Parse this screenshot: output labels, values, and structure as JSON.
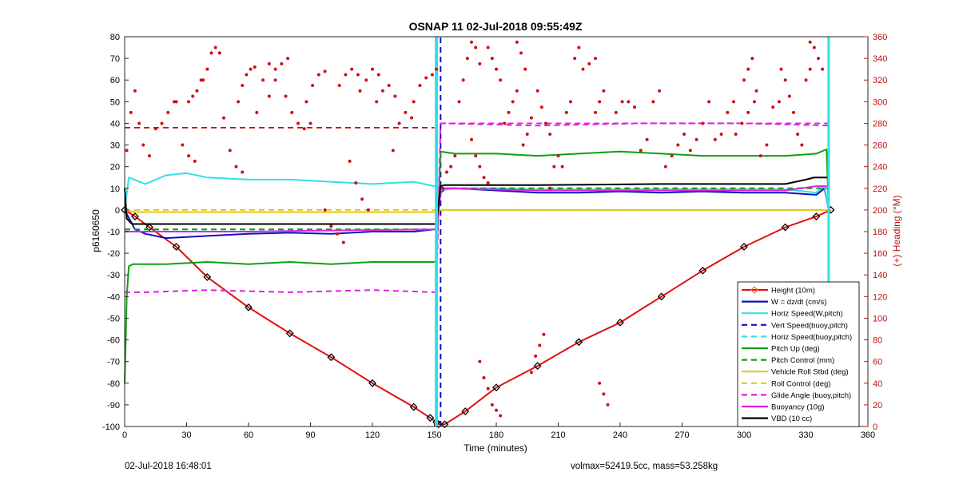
{
  "footer": {
    "left": "02-Jul-2018 16:48:01",
    "right": "volmax=52419.5cc, mass=53.258kg"
  },
  "chart_data": {
    "type": "line",
    "title": "OSNAP 11 02-Jul-2018 09:55:49Z",
    "xlabel": "Time (minutes)",
    "ylabel": "p6160650",
    "y2label": "(+) Heading (°M)",
    "xlim": [
      0,
      360
    ],
    "ylim": [
      -100,
      80
    ],
    "y2lim": [
      0,
      360
    ],
    "x_ticks": [
      0,
      30,
      60,
      90,
      120,
      150,
      180,
      210,
      240,
      270,
      300,
      330,
      360
    ],
    "y_ticks": [
      -100,
      -90,
      -80,
      -70,
      -60,
      -50,
      -40,
      -30,
      -20,
      -10,
      0,
      10,
      20,
      30,
      40,
      50,
      60,
      70,
      80
    ],
    "y2_ticks": [
      0,
      20,
      40,
      60,
      80,
      100,
      120,
      140,
      160,
      180,
      200,
      220,
      240,
      260,
      280,
      300,
      320,
      340,
      360
    ],
    "legend_position": "bottom-right",
    "grid": false,
    "series": [
      {
        "name": "Height (10m)",
        "color": "#e01010",
        "style": "solid",
        "marker": "diamond",
        "x": [
          0,
          5,
          12,
          25,
          40,
          60,
          80,
          100,
          120,
          140,
          148,
          151,
          152,
          155,
          165,
          180,
          200,
          220,
          240,
          260,
          280,
          300,
          320,
          335,
          342
        ],
        "y": [
          0,
          -3,
          -8,
          -17,
          -31,
          -45,
          -57,
          -68,
          -80,
          -91,
          -96,
          -98,
          -99,
          -99,
          -93,
          -82,
          -72,
          -61,
          -52,
          -40,
          -28,
          -17,
          -8,
          -3,
          0
        ]
      },
      {
        "name": "W = dz/dt (cm/s)",
        "color": "#1010c0",
        "style": "solid",
        "x": [
          0,
          5,
          10,
          20,
          40,
          60,
          80,
          100,
          120,
          140,
          150,
          151,
          153,
          156,
          160,
          180,
          200,
          220,
          240,
          260,
          280,
          300,
          320,
          335,
          339,
          341
        ],
        "y": [
          0,
          -9,
          -11,
          -13,
          -12,
          -11,
          -10.5,
          -11,
          -10,
          -10,
          -9,
          -9,
          8,
          10,
          10,
          9,
          8,
          8,
          8.5,
          8,
          8.5,
          8,
          8,
          7,
          10,
          0
        ]
      },
      {
        "name": "Horiz Speed(W,pitch)",
        "color": "#30e0e8",
        "style": "solid",
        "x": [
          0,
          2,
          10,
          20,
          30,
          40,
          60,
          80,
          100,
          120,
          140,
          150,
          151,
          153,
          160,
          180,
          200,
          220,
          240,
          260,
          280,
          300,
          320,
          335,
          339,
          341
        ],
        "y": [
          0,
          15,
          12,
          16,
          17,
          15,
          14,
          14,
          13,
          12,
          13,
          11,
          11,
          9,
          10,
          10,
          9.5,
          9.5,
          9.5,
          9.5,
          9.5,
          9.5,
          9.5,
          8,
          11,
          0
        ]
      },
      {
        "name": "Vert Speed(buoy,pitch)",
        "color": "#1010c0",
        "style": "dashed",
        "x": [
          153,
          153
        ],
        "y": [
          -100,
          80
        ]
      },
      {
        "name": "Horiz Speed(buoy,pitch)",
        "color": "#30e0e8",
        "style": "dashed",
        "x": [
          0,
          150,
          151,
          153,
          341
        ],
        "y": [
          -9,
          -9,
          -9,
          10,
          10
        ]
      },
      {
        "name": "Pitch Up (deg)",
        "color": "#10a010",
        "style": "solid",
        "x": [
          0,
          1,
          2,
          4,
          20,
          40,
          60,
          80,
          100,
          120,
          140,
          150,
          151,
          153,
          160,
          180,
          200,
          220,
          240,
          260,
          280,
          300,
          320,
          335,
          340,
          341
        ],
        "y": [
          -80,
          -40,
          -26,
          -25,
          -25,
          -24,
          -25,
          -24,
          -25,
          -24,
          -24,
          -24,
          -24,
          27,
          26,
          26,
          25,
          26,
          27,
          26,
          25,
          25,
          25,
          26,
          28,
          0
        ]
      },
      {
        "name": "Pitch Control (mm)",
        "color": "#10a010",
        "style": "dashed",
        "x": [
          0,
          150,
          151,
          153,
          341
        ],
        "y": [
          -9,
          -9,
          -9,
          10,
          10
        ]
      },
      {
        "name": "Vehicle Roll Stbd (deg)",
        "color": "#e0c820",
        "style": "solid",
        "x": [
          0,
          5,
          30,
          60,
          90,
          120,
          150,
          153,
          180,
          210,
          240,
          270,
          300,
          330,
          341
        ],
        "y": [
          0,
          -1,
          -1,
          -1,
          -1,
          -1,
          -1,
          0,
          0,
          0,
          0,
          0,
          0,
          0,
          0
        ]
      },
      {
        "name": "Roll Control (deg)",
        "color": "#e0c820",
        "style": "dashed",
        "x": [
          0,
          150,
          153,
          341
        ],
        "y": [
          0,
          0,
          0,
          0
        ]
      },
      {
        "name": "Glide Angle (buoy,pitch)",
        "color": "#e020e0",
        "style": "dashed",
        "x": [
          0,
          10,
          40,
          80,
          120,
          150,
          151,
          153,
          200,
          250,
          300,
          341
        ],
        "y": [
          -38,
          -38,
          -37,
          -38,
          -37,
          -38,
          -38,
          40,
          39,
          40,
          40,
          39
        ]
      },
      {
        "name": "Buoyancy (10g)",
        "color": "#e020e0",
        "style": "solid",
        "x": [
          0,
          20,
          60,
          100,
          150,
          151,
          153,
          155,
          200,
          260,
          320,
          335,
          341
        ],
        "y": [
          -10,
          -10,
          -10,
          -9.5,
          -9,
          -9,
          8,
          10,
          9,
          9,
          9,
          11,
          11
        ]
      },
      {
        "name": "VBD (10 cc)",
        "color": "#000000",
        "style": "solid",
        "x": [
          0,
          1,
          3,
          4,
          100,
          150,
          151,
          153,
          155,
          200,
          260,
          320,
          330,
          334,
          341
        ],
        "y": [
          10,
          -4,
          -6,
          -6.5,
          -6.5,
          -6.5,
          -6.5,
          11,
          11.5,
          11.5,
          12,
          12,
          14,
          15,
          15
        ]
      },
      {
        "name": "",
        "color": "#30e0e8",
        "style": "solid",
        "width": 4,
        "x": [
          151,
          151
        ],
        "y": [
          -100,
          80
        ],
        "show_in_legend": false
      },
      {
        "name": "",
        "color": "#30e0e8",
        "style": "solid",
        "width": 3,
        "x": [
          341,
          341
        ],
        "y": [
          -100,
          80
        ],
        "show_in_legend": false
      }
    ],
    "reference_lines": [
      {
        "axis": "y2",
        "value": 276,
        "color": "#c01010",
        "style": "dashed",
        "xlim": [
          0,
          150
        ]
      },
      {
        "axis": "y2",
        "value": 280,
        "color": "#e020e0",
        "style": "dashed",
        "xlim": [
          153,
          341
        ]
      }
    ],
    "heading_scatter": {
      "color": "#d01010",
      "segments": [
        {
          "x": [
            1,
            3,
            5,
            7,
            9
          ],
          "y": [
            255,
            290,
            310,
            280,
            260
          ]
        },
        {
          "x": [
            12,
            15,
            18,
            21,
            24
          ],
          "y": [
            250,
            275,
            280,
            290,
            300
          ]
        },
        {
          "x": [
            25,
            28,
            31,
            34
          ],
          "y": [
            300,
            260,
            250,
            245
          ]
        },
        {
          "x": [
            31,
            33,
            35,
            37
          ],
          "y": [
            300,
            305,
            310,
            320
          ]
        },
        {
          "x": [
            38,
            40,
            42,
            44,
            46
          ],
          "y": [
            320,
            330,
            345,
            350,
            345
          ]
        },
        {
          "x": [
            48,
            51,
            54,
            57
          ],
          "y": [
            285,
            255,
            240,
            235
          ]
        },
        {
          "x": [
            55,
            57,
            59,
            61,
            63
          ],
          "y": [
            300,
            315,
            325,
            330,
            332
          ]
        },
        {
          "x": [
            64,
            67,
            70,
            73
          ],
          "y": [
            290,
            320,
            335,
            330
          ]
        },
        {
          "x": [
            70,
            73,
            76,
            79
          ],
          "y": [
            305,
            320,
            335,
            340
          ]
        },
        {
          "x": [
            78,
            81,
            84,
            87,
            90
          ],
          "y": [
            305,
            290,
            280,
            275,
            280
          ]
        },
        {
          "x": [
            88,
            91,
            94,
            97
          ],
          "y": [
            300,
            315,
            325,
            328
          ]
        },
        {
          "x": [
            97,
            100,
            103,
            106
          ],
          "y": [
            200,
            185,
            178,
            170
          ]
        },
        {
          "x": [
            104,
            107,
            110,
            113
          ],
          "y": [
            315,
            325,
            330,
            325
          ]
        },
        {
          "x": [
            109,
            112,
            115,
            118
          ],
          "y": [
            245,
            225,
            210,
            200
          ]
        },
        {
          "x": [
            114,
            117,
            120,
            123
          ],
          "y": [
            310,
            320,
            330,
            325
          ]
        },
        {
          "x": [
            122,
            125,
            128,
            131
          ],
          "y": [
            300,
            310,
            315,
            305
          ]
        },
        {
          "x": [
            130,
            133,
            136,
            139
          ],
          "y": [
            255,
            280,
            290,
            285
          ]
        },
        {
          "x": [
            140,
            143,
            146,
            149,
            151
          ],
          "y": [
            300,
            315,
            322,
            325,
            330
          ]
        },
        {
          "x": [
            154,
            156,
            158,
            160
          ],
          "y": [
            220,
            235,
            240,
            250
          ]
        },
        {
          "x": [
            162,
            164,
            166,
            168,
            170,
            172
          ],
          "y": [
            300,
            320,
            340,
            355,
            350,
            335
          ]
        },
        {
          "x": [
            168,
            170,
            172,
            174,
            176
          ],
          "y": [
            265,
            250,
            240,
            230,
            225
          ]
        },
        {
          "x": [
            172,
            174,
            176
          ],
          "y": [
            60,
            45,
            35
          ]
        },
        {
          "x": [
            176,
            178,
            180,
            182
          ],
          "y": [
            350,
            340,
            330,
            320
          ]
        },
        {
          "x": [
            178,
            180,
            182
          ],
          "y": [
            20,
            15,
            10
          ]
        },
        {
          "x": [
            184,
            186,
            188,
            190
          ],
          "y": [
            280,
            290,
            300,
            310
          ]
        },
        {
          "x": [
            190,
            192,
            194
          ],
          "y": [
            355,
            345,
            330
          ]
        },
        {
          "x": [
            193,
            195,
            197
          ],
          "y": [
            260,
            270,
            285
          ]
        },
        {
          "x": [
            197,
            199,
            201,
            203
          ],
          "y": [
            50,
            65,
            75,
            85
          ]
        },
        {
          "x": [
            200,
            202,
            204,
            206
          ],
          "y": [
            310,
            295,
            280,
            270
          ]
        },
        {
          "x": [
            206,
            208,
            210,
            212
          ],
          "y": [
            220,
            240,
            250,
            240
          ]
        },
        {
          "x": [
            214,
            216,
            218,
            220
          ],
          "y": [
            290,
            300,
            340,
            350
          ]
        },
        {
          "x": [
            222,
            225,
            228
          ],
          "y": [
            330,
            335,
            340
          ]
        },
        {
          "x": [
            228,
            230,
            232
          ],
          "y": [
            290,
            300,
            310
          ]
        },
        {
          "x": [
            230,
            232,
            234
          ],
          "y": [
            40,
            30,
            20
          ]
        },
        {
          "x": [
            238,
            241,
            244,
            247
          ],
          "y": [
            290,
            300,
            300,
            295
          ]
        },
        {
          "x": [
            250,
            253,
            256,
            259
          ],
          "y": [
            255,
            265,
            300,
            310
          ]
        },
        {
          "x": [
            262,
            265,
            268,
            271
          ],
          "y": [
            240,
            250,
            260,
            270
          ]
        },
        {
          "x": [
            274,
            277,
            280,
            283
          ],
          "y": [
            255,
            265,
            280,
            300
          ]
        },
        {
          "x": [
            286,
            289,
            292,
            295
          ],
          "y": [
            265,
            270,
            290,
            300
          ]
        },
        {
          "x": [
            296,
            299,
            302,
            305
          ],
          "y": [
            270,
            280,
            290,
            300
          ]
        },
        {
          "x": [
            300,
            302,
            304,
            306
          ],
          "y": [
            320,
            330,
            340,
            310
          ]
        },
        {
          "x": [
            308,
            311,
            314,
            317
          ],
          "y": [
            250,
            260,
            295,
            300
          ]
        },
        {
          "x": [
            318,
            320,
            322,
            324
          ],
          "y": [
            330,
            320,
            305,
            290
          ]
        },
        {
          "x": [
            326,
            328,
            330,
            332
          ],
          "y": [
            270,
            260,
            320,
            330
          ]
        },
        {
          "x": [
            332,
            334,
            336,
            338
          ],
          "y": [
            355,
            350,
            340,
            330
          ]
        },
        {
          "x": [
            334,
            336,
            338
          ],
          "y": [
            5,
            10,
            5
          ]
        }
      ]
    }
  }
}
